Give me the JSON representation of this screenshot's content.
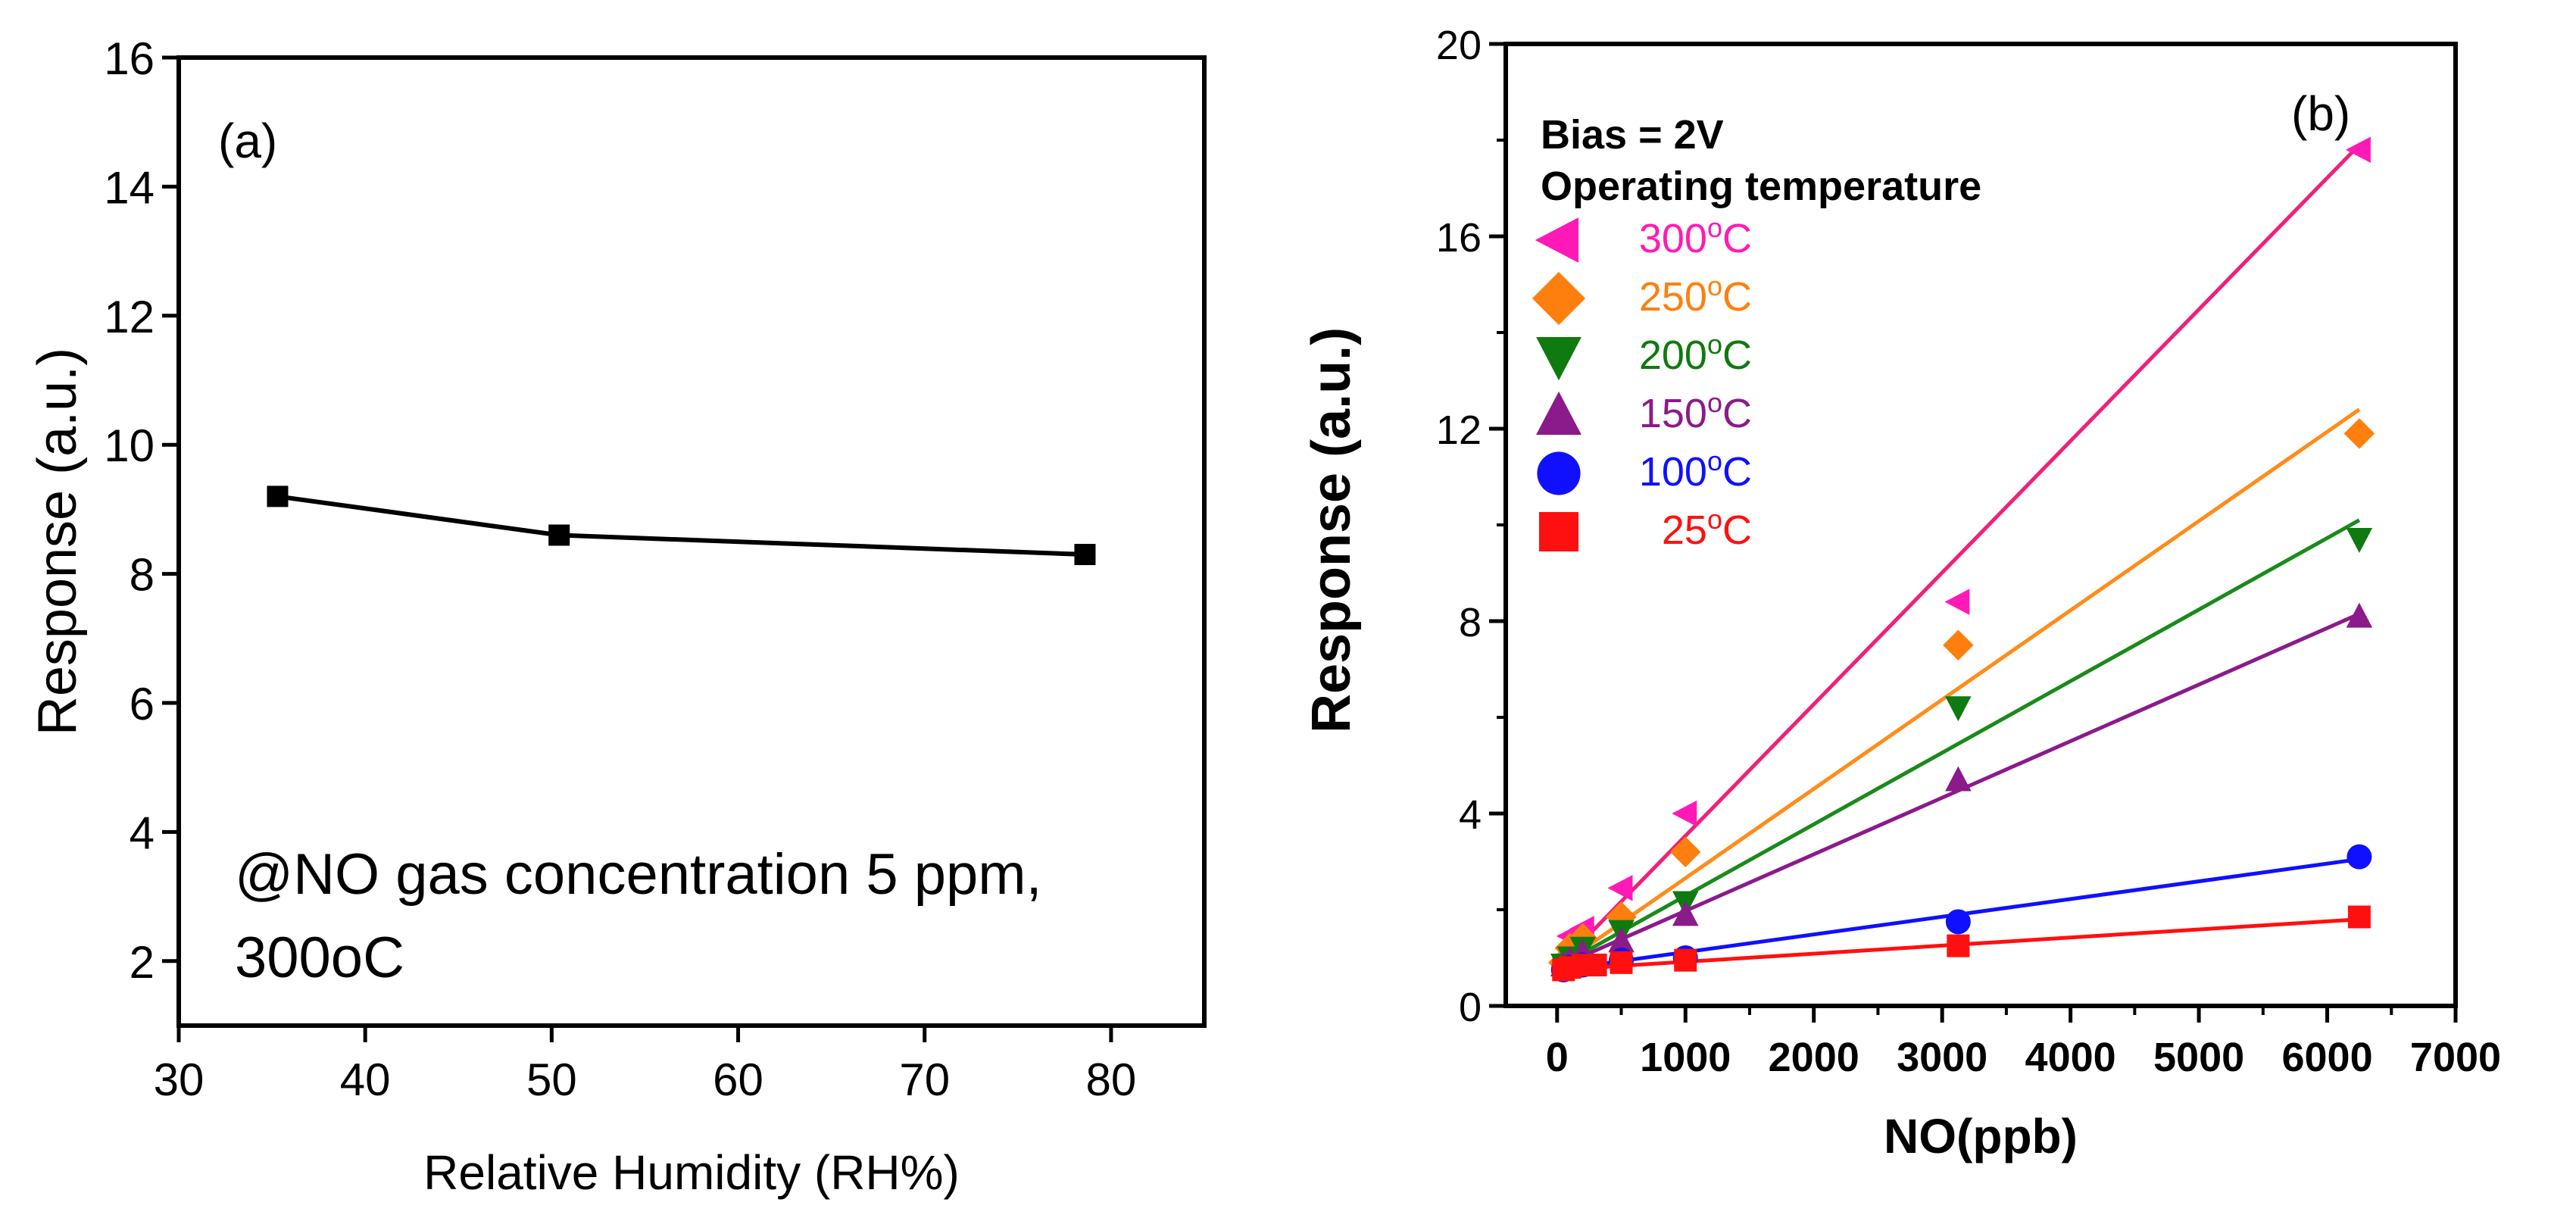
{
  "chart_data": [
    {
      "type": "line",
      "panel_label": "(a)",
      "xlabel": "Relative Humidity (RH%)",
      "ylabel": "Response (a.u.)",
      "xlim": [
        30,
        85
      ],
      "ylim": [
        1,
        16
      ],
      "x_ticks": [
        "30",
        "40",
        "50",
        "60",
        "70",
        "80"
      ],
      "y_ticks": [
        "2",
        "4",
        "6",
        "8",
        "10",
        "12",
        "14",
        "16"
      ],
      "series": [
        {
          "name": "Response",
          "color": "#000000",
          "marker": "square",
          "x": [
            35.3,
            50.4,
            78.6
          ],
          "y": [
            9.2,
            8.6,
            8.3
          ]
        }
      ],
      "annotation_line1": "@NO gas concentration 5 ppm,",
      "annotation_line2": "300oC"
    },
    {
      "type": "scatter",
      "panel_label": "(b)",
      "xlabel": "NO(ppb)",
      "ylabel": "Response (a.u.)",
      "xlim": [
        -400,
        7000
      ],
      "ylim": [
        0,
        20
      ],
      "x_ticks": [
        "0",
        "1000",
        "2000",
        "3000",
        "4000",
        "5000",
        "6000",
        "7000"
      ],
      "y_ticks": [
        "0",
        "4",
        "8",
        "12",
        "16",
        "20"
      ],
      "legend_title_1": "Bias = 2V",
      "legend_title_2": "Operating temperature",
      "legend_placement": "top-left",
      "series": [
        {
          "name": "300",
          "unit": "oC",
          "color": "#ff1ab8",
          "line_color": "#f0207a",
          "marker": "triangle-left",
          "x": [
            100,
            200,
            500,
            1000,
            3125,
            6250
          ],
          "y": [
            1.45,
            1.6,
            2.45,
            4.0,
            8.4,
            17.8
          ],
          "fit": [
            0.8,
            17.9
          ]
        },
        {
          "name": "250",
          "unit": "oC",
          "color": "#ff7f0e",
          "line_color": "#ff8c1a",
          "marker": "diamond",
          "x": [
            50,
            100,
            200,
            500,
            1000,
            3125,
            6250
          ],
          "y": [
            0.9,
            1.2,
            1.4,
            1.85,
            3.2,
            7.5,
            11.9
          ],
          "fit": [
            0.8,
            12.4
          ]
        },
        {
          "name": "200",
          "unit": "oC",
          "color": "#0f7a0f",
          "line_color": "#1a8a1a",
          "marker": "triangle-down",
          "x": [
            50,
            100,
            200,
            500,
            1000,
            3125,
            6250
          ],
          "y": [
            0.85,
            1.0,
            1.2,
            1.55,
            2.15,
            6.2,
            9.7
          ],
          "fit": [
            0.8,
            10.1
          ]
        },
        {
          "name": "150",
          "unit": "oC",
          "color": "#8b1a8b",
          "line_color": "#8b1a8b",
          "marker": "triangle-up",
          "x": [
            50,
            100,
            200,
            500,
            1000,
            3125,
            6250
          ],
          "y": [
            0.85,
            0.95,
            1.1,
            1.35,
            1.9,
            4.7,
            8.1
          ],
          "fit": [
            0.8,
            8.15
          ]
        },
        {
          "name": "100",
          "unit": "oC",
          "color": "#1010ff",
          "line_color": "#1010ff",
          "marker": "circle",
          "x": [
            50,
            100,
            200,
            500,
            1000,
            3125,
            6250
          ],
          "y": [
            0.75,
            0.8,
            0.85,
            0.95,
            1.0,
            1.75,
            3.1
          ],
          "fit": [
            0.75,
            3.05
          ]
        },
        {
          "name": "25",
          "unit": "oC",
          "color": "#ff1010",
          "line_color": "#ff1010",
          "marker": "square",
          "x": [
            50,
            100,
            200,
            300,
            500,
            1000,
            3125,
            6250
          ],
          "y": [
            0.75,
            0.8,
            0.85,
            0.85,
            0.9,
            0.95,
            1.25,
            1.85
          ],
          "fit": [
            0.75,
            1.8
          ]
        }
      ]
    }
  ]
}
